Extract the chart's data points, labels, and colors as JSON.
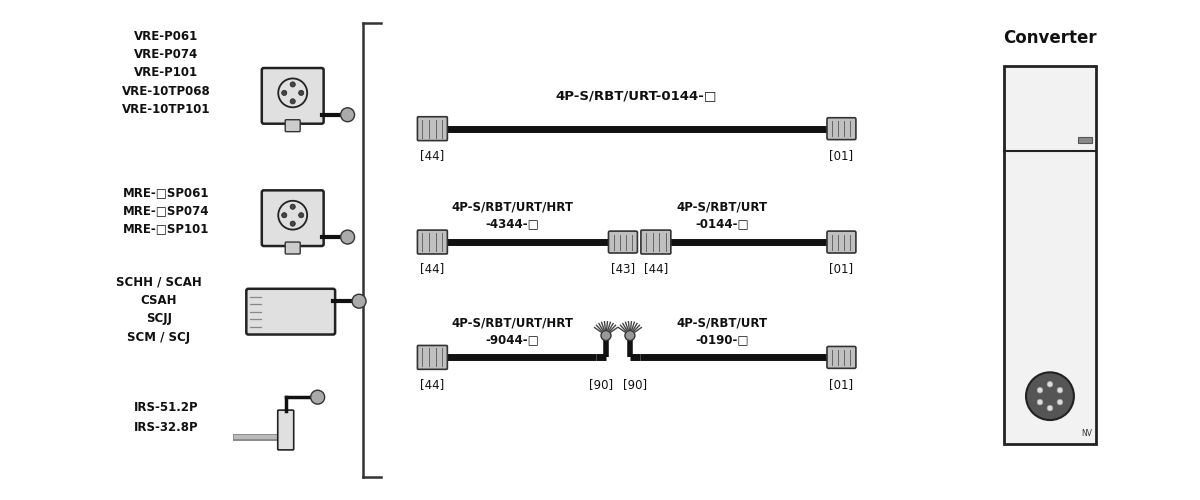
{
  "bg_color": "#ffffff",
  "converter_label": "Converter",
  "sensor_labels_1": [
    "VRE-P061",
    "VRE-P074",
    "VRE-P101",
    "VRE-10TP068",
    "VRE-10TP101"
  ],
  "sensor_labels_2": [
    "MRE-□SP061",
    "MRE-□SP074",
    "MRE-□SP101"
  ],
  "sensor_labels_3": [
    "SCHH / SCAH",
    "CSAH",
    "SCJJ",
    "SCM / SCJ"
  ],
  "sensor_labels_4": [
    "IRS-51.2P",
    "IRS-32.8P"
  ],
  "cable_row1_label": "4P-S/RBT/URT-0144-□",
  "cable_row2_label1": "4P-S/RBT/URT/HRT",
  "cable_row2_label1b": "-4344-□",
  "cable_row2_label2": "4P-S/RBT/URT",
  "cable_row2_label2b": "-0144-□",
  "cable_row3_label1": "4P-S/RBT/URT/HRT",
  "cable_row3_label1b": "-9044-□",
  "cable_row3_label2": "4P-S/RBT/URT",
  "cable_row3_label2b": "-0190-□",
  "row1_tags": [
    "[44]",
    "[01]"
  ],
  "row2_tags": [
    "[44]",
    "[43]",
    "[44]",
    "[01]"
  ],
  "row3_tags": [
    "[44]",
    "[90]",
    "[90]",
    "[01]"
  ]
}
